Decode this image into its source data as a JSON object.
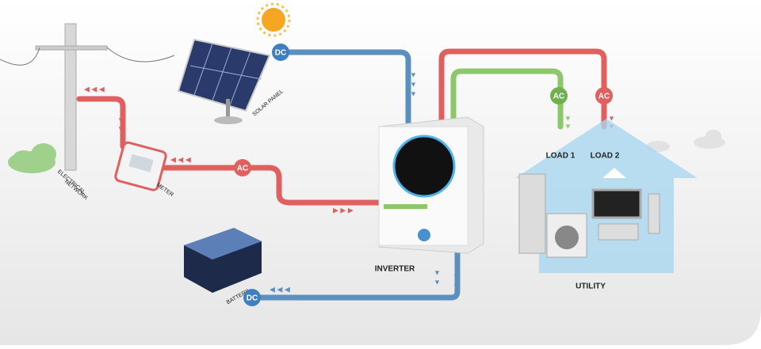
{
  "nodes": {
    "grid": {
      "label_lines": [
        "ELECTRICAL",
        "NETWORK"
      ]
    },
    "meter": {
      "label": "METER"
    },
    "solar": {
      "label": "SOLAR PANEL"
    },
    "inverter": {
      "label": "INVERTER"
    },
    "battery": {
      "label": "BATTERY"
    },
    "load1": {
      "label": "LOAD 1"
    },
    "load2": {
      "label": "LOAD 2"
    },
    "utility": {
      "label": "UTILITY"
    }
  },
  "links": {
    "solar_dc": "DC",
    "grid_ac": "AC",
    "load1_ac": "AC",
    "load2_ac": "AC",
    "battery_dc": "DC"
  }
}
